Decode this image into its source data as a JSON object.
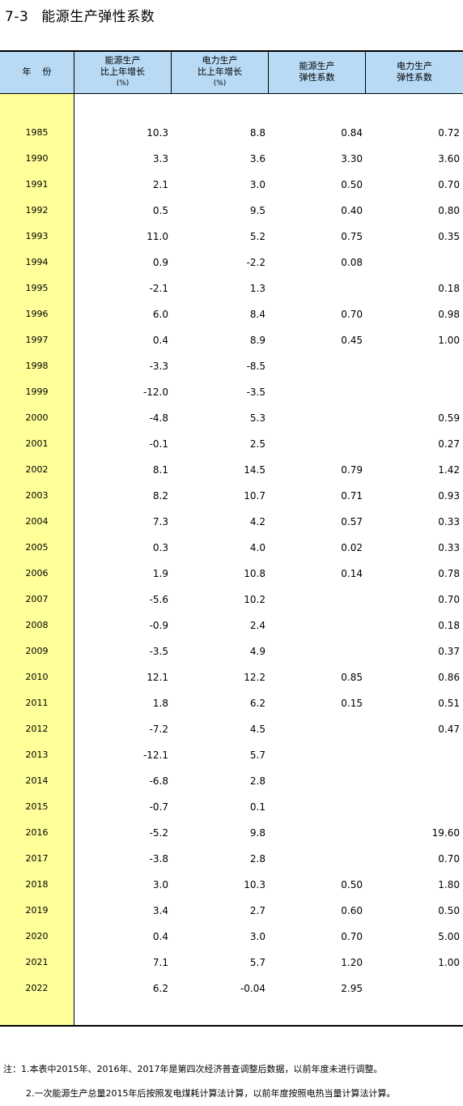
{
  "title": {
    "number": "7-3",
    "text": "能源生产弹性系数"
  },
  "headers": {
    "year": "年份",
    "energy_growth": [
      "能源生产",
      "比上年增长",
      "(%)"
    ],
    "power_growth": [
      "电力生产",
      "比上年增长",
      "(%)"
    ],
    "energy_elasticity": [
      "能源生产",
      "弹性系数"
    ],
    "power_elasticity": [
      "电力生产",
      "弹性系数"
    ]
  },
  "rows": [
    [
      "1985",
      "10.3",
      "8.8",
      "0.84",
      "0.72"
    ],
    [
      "1990",
      "3.3",
      "3.6",
      "3.30",
      "3.60"
    ],
    [
      "1991",
      "2.1",
      "3.0",
      "0.50",
      "0.70"
    ],
    [
      "1992",
      "0.5",
      "9.5",
      "0.40",
      "0.80"
    ],
    [
      "1993",
      "11.0",
      "5.2",
      "0.75",
      "0.35"
    ],
    [
      "1994",
      "0.9",
      "-2.2",
      "0.08",
      ""
    ],
    [
      "1995",
      "-2.1",
      "1.3",
      "",
      "0.18"
    ],
    [
      "1996",
      "6.0",
      "8.4",
      "0.70",
      "0.98"
    ],
    [
      "1997",
      "0.4",
      "8.9",
      "0.45",
      "1.00"
    ],
    [
      "1998",
      "-3.3",
      "-8.5",
      "",
      ""
    ],
    [
      "1999",
      "-12.0",
      "-3.5",
      "",
      ""
    ],
    [
      "2000",
      "-4.8",
      "5.3",
      "",
      "0.59"
    ],
    [
      "2001",
      "-0.1",
      "2.5",
      "",
      "0.27"
    ],
    [
      "2002",
      "8.1",
      "14.5",
      "0.79",
      "1.42"
    ],
    [
      "2003",
      "8.2",
      "10.7",
      "0.71",
      "0.93"
    ],
    [
      "2004",
      "7.3",
      "4.2",
      "0.57",
      "0.33"
    ],
    [
      "2005",
      "0.3",
      "4.0",
      "0.02",
      "0.33"
    ],
    [
      "2006",
      "1.9",
      "10.8",
      "0.14",
      "0.78"
    ],
    [
      "2007",
      "-5.6",
      "10.2",
      "",
      "0.70"
    ],
    [
      "2008",
      "-0.9",
      "2.4",
      "",
      "0.18"
    ],
    [
      "2009",
      "-3.5",
      "4.9",
      "",
      "0.37"
    ],
    [
      "2010",
      "12.1",
      "12.2",
      "0.85",
      "0.86"
    ],
    [
      "2011",
      "1.8",
      "6.2",
      "0.15",
      "0.51"
    ],
    [
      "2012",
      "-7.2",
      "4.5",
      "",
      "0.47"
    ],
    [
      "2013",
      "-12.1",
      "5.7",
      "",
      ""
    ],
    [
      "2014",
      "-6.8",
      "2.8",
      "",
      ""
    ],
    [
      "2015",
      "-0.7",
      "0.1",
      "",
      ""
    ],
    [
      "2016",
      "-5.2",
      "9.8",
      "",
      "19.60"
    ],
    [
      "2017",
      "-3.8",
      "2.8",
      "",
      "0.70"
    ],
    [
      "2018",
      "3.0",
      "10.3",
      "0.50",
      "1.80"
    ],
    [
      "2019",
      "3.4",
      "2.7",
      "0.60",
      "0.50"
    ],
    [
      "2020",
      "0.4",
      "3.0",
      "0.70",
      "5.00"
    ],
    [
      "2021",
      "7.1",
      "5.7",
      "1.20",
      "1.00"
    ],
    [
      "2022",
      "6.2",
      "-0.04",
      "2.95",
      ""
    ]
  ],
  "notes": [
    "注：1.本表中2015年、2016年、2017年是第四次经济普查调整后数据，以前年度未进行调整。",
    "2.一次能源生产总量2015年后按照发电煤耗计算法计算，以前年度按照电热当量计算法计算。"
  ],
  "colors": {
    "header_bg": "#b8daf5",
    "year_col_bg": "#ffff99"
  }
}
